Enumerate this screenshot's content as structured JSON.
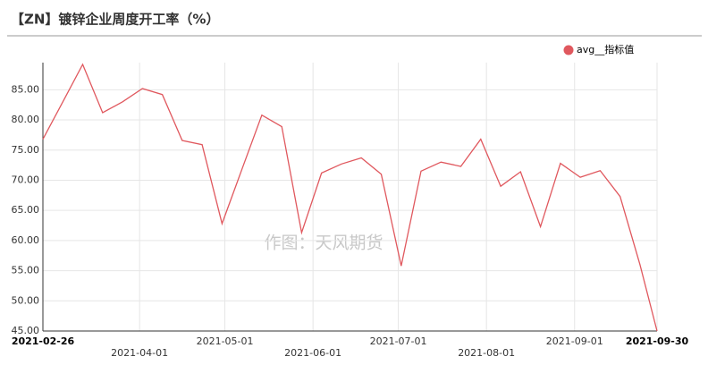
{
  "chart_data": {
    "type": "line",
    "title": "【ZN】镀锌企业周度开工率（%）",
    "watermark": "作图：天风期货",
    "x": [
      "2021-02-26",
      "2021-03-05",
      "2021-03-12",
      "2021-03-19",
      "2021-03-26",
      "2021-04-02",
      "2021-04-09",
      "2021-04-16",
      "2021-04-23",
      "2021-04-30",
      "2021-05-07",
      "2021-05-14",
      "2021-05-21",
      "2021-05-28",
      "2021-06-04",
      "2021-06-11",
      "2021-06-18",
      "2021-06-25",
      "2021-07-02",
      "2021-07-09",
      "2021-07-16",
      "2021-07-23",
      "2021-07-30",
      "2021-08-06",
      "2021-08-13",
      "2021-08-20",
      "2021-08-27",
      "2021-09-03",
      "2021-09-10",
      "2021-09-17",
      "2021-09-24",
      "2021-09-30"
    ],
    "series": [
      {
        "name": "avg__指标值",
        "color": "#e0585e",
        "values": [
          76.8,
          83.0,
          89.2,
          81.2,
          83.0,
          85.2,
          84.2,
          76.6,
          75.9,
          62.8,
          71.8,
          80.8,
          78.9,
          61.3,
          71.2,
          72.7,
          73.7,
          71.0,
          55.8,
          71.5,
          73.0,
          72.3,
          76.8,
          69.0,
          71.4,
          62.3,
          72.8,
          70.5,
          71.6,
          67.3,
          56.0,
          45.0
        ]
      }
    ],
    "xlim": [
      "2021-02-26",
      "2021-09-30"
    ],
    "xticks": [
      "2021-02-26",
      "2021-04-01",
      "2021-05-01",
      "2021-06-01",
      "2021-07-01",
      "2021-08-01",
      "2021-09-01",
      "2021-09-30"
    ],
    "ylim": [
      45,
      89.5
    ],
    "yticks": [
      {
        "value": 45,
        "label": "45.00"
      },
      {
        "value": 50,
        "label": "50.00"
      },
      {
        "value": 55,
        "label": "55.00"
      },
      {
        "value": 60,
        "label": "60.00"
      },
      {
        "value": 65,
        "label": "65.00"
      },
      {
        "value": 70,
        "label": "70.00"
      },
      {
        "value": 75,
        "label": "75.00"
      },
      {
        "value": 80,
        "label": "80.00"
      },
      {
        "value": 85,
        "label": "85.00"
      }
    ],
    "grid": true
  }
}
